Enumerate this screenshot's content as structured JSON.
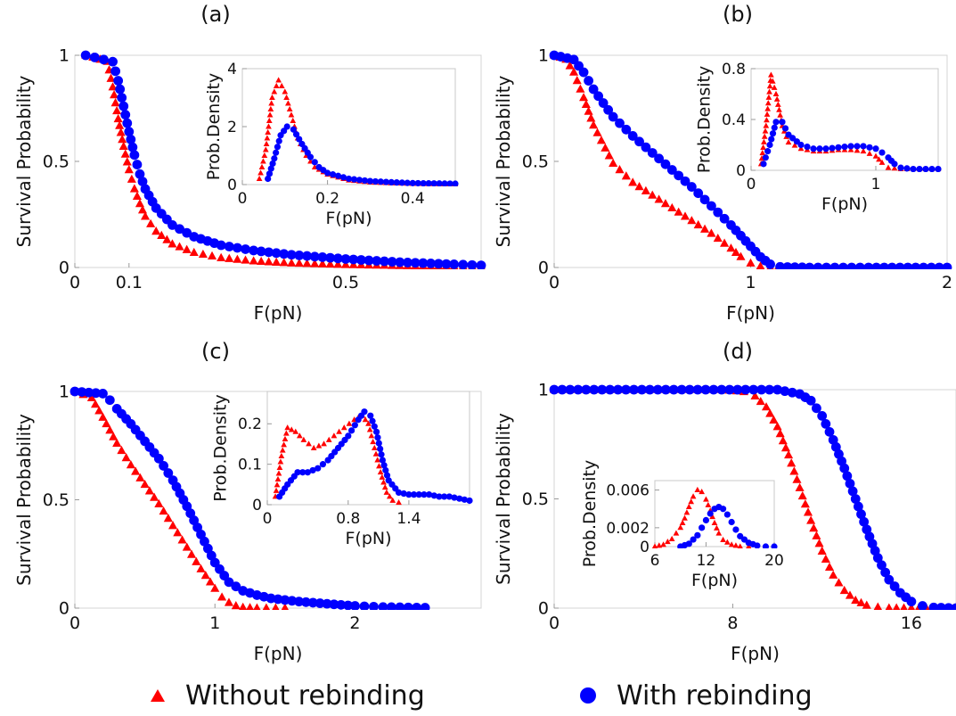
{
  "legend": {
    "without": "Without rebinding",
    "with": "With rebinding",
    "without_color": "#ff0000",
    "with_color": "#0000ff"
  },
  "chart_data": [
    {
      "type": "scatter",
      "title": "(a)",
      "xlabel": "F(pN)",
      "ylabel": "Survival Probability",
      "xlim": [
        0,
        0.75
      ],
      "ylim": [
        0,
        1
      ],
      "xticks": [
        0,
        0.1,
        0.5
      ],
      "xticklabels": [
        "0",
        "0.1",
        "0.5"
      ],
      "yticks": [
        0,
        0.5,
        1
      ],
      "yticklabels": [
        "0",
        "0.5",
        "1"
      ],
      "series": [
        {
          "name": "Without rebinding",
          "color": "#ff0000",
          "marker": "triangle",
          "x": [
            0.02,
            0.06,
            0.07,
            0.08,
            0.09,
            0.1,
            0.11,
            0.12,
            0.13,
            0.15,
            0.18,
            0.22,
            0.27,
            0.33,
            0.4,
            0.5,
            0.6,
            0.7,
            0.75
          ],
          "y": [
            1,
            0.97,
            0.85,
            0.7,
            0.57,
            0.46,
            0.37,
            0.3,
            0.24,
            0.17,
            0.11,
            0.07,
            0.045,
            0.03,
            0.02,
            0.013,
            0.008,
            0.005,
            0.004
          ]
        },
        {
          "name": "With rebinding",
          "color": "#0000ff",
          "marker": "circle",
          "x": [
            0.02,
            0.07,
            0.08,
            0.09,
            0.1,
            0.11,
            0.12,
            0.13,
            0.15,
            0.18,
            0.22,
            0.27,
            0.33,
            0.4,
            0.5,
            0.6,
            0.7,
            0.75
          ],
          "y": [
            1,
            0.97,
            0.88,
            0.76,
            0.64,
            0.53,
            0.44,
            0.37,
            0.28,
            0.2,
            0.145,
            0.105,
            0.08,
            0.06,
            0.04,
            0.025,
            0.015,
            0.01
          ]
        }
      ],
      "inset": {
        "xlabel": "F(pN)",
        "ylabel": "Prob.Density",
        "xlim": [
          0,
          0.5
        ],
        "ylim": [
          0,
          4
        ],
        "xticks": [
          0,
          0.2,
          0.4
        ],
        "xticklabels": [
          "0",
          "0.2",
          "0.4"
        ],
        "yticks": [
          0,
          2,
          4
        ],
        "yticklabels": [
          "0",
          "2",
          "4"
        ],
        "series": [
          {
            "name": "Without rebinding",
            "color": "#ff0000",
            "marker": "triangle",
            "x": [
              0.04,
              0.055,
              0.07,
              0.085,
              0.1,
              0.115,
              0.13,
              0.15,
              0.17,
              0.2,
              0.25,
              0.3,
              0.35,
              0.4,
              0.45,
              0.5
            ],
            "y": [
              0.2,
              1.2,
              3.0,
              3.6,
              3.2,
              2.4,
              1.6,
              1.0,
              0.6,
              0.35,
              0.15,
              0.08,
              0.05,
              0.03,
              0.02,
              0.01
            ]
          },
          {
            "name": "With rebinding",
            "color": "#0000ff",
            "marker": "circle",
            "x": [
              0.06,
              0.075,
              0.09,
              0.105,
              0.12,
              0.14,
              0.16,
              0.18,
              0.2,
              0.25,
              0.3,
              0.35,
              0.4,
              0.45,
              0.5
            ],
            "y": [
              0.2,
              0.9,
              1.7,
              2.0,
              1.9,
              1.4,
              0.95,
              0.6,
              0.4,
              0.2,
              0.12,
              0.08,
              0.05,
              0.04,
              0.03
            ]
          }
        ]
      }
    },
    {
      "type": "scatter",
      "title": "(b)",
      "xlabel": "F(pN)",
      "ylabel": "Survival Probability",
      "xlim": [
        0,
        2
      ],
      "ylim": [
        0,
        1
      ],
      "xticks": [
        0,
        1,
        2
      ],
      "xticklabels": [
        "0",
        "1",
        "2"
      ],
      "yticks": [
        0,
        0.5,
        1
      ],
      "yticklabels": [
        "0",
        "0.5",
        "1"
      ],
      "series": [
        {
          "name": "Without rebinding",
          "color": "#ff0000",
          "marker": "triangle",
          "x": [
            0,
            0.06,
            0.1,
            0.15,
            0.2,
            0.3,
            0.4,
            0.5,
            0.6,
            0.7,
            0.8,
            0.9,
            0.95,
            1.0,
            1.05,
            1.1,
            1.3,
            1.6,
            2.0
          ],
          "y": [
            1,
            0.98,
            0.92,
            0.8,
            0.67,
            0.49,
            0.4,
            0.34,
            0.28,
            0.22,
            0.16,
            0.09,
            0.05,
            0.02,
            0.005,
            0,
            0,
            0,
            0
          ]
        },
        {
          "name": "With rebinding",
          "color": "#0000ff",
          "marker": "circle",
          "x": [
            0,
            0.1,
            0.15,
            0.2,
            0.3,
            0.4,
            0.5,
            0.6,
            0.7,
            0.8,
            0.9,
            1.0,
            1.05,
            1.1,
            1.15,
            1.3,
            1.6,
            2.0
          ],
          "y": [
            1,
            0.98,
            0.92,
            0.84,
            0.71,
            0.62,
            0.54,
            0.46,
            0.38,
            0.29,
            0.2,
            0.1,
            0.05,
            0.015,
            0.003,
            0,
            0,
            0
          ]
        }
      ],
      "inset": {
        "xlabel": "F(pN)",
        "ylabel": "Prob.Density",
        "xlim": [
          0,
          1.5
        ],
        "ylim": [
          0,
          0.8
        ],
        "xticks": [
          0,
          1
        ],
        "xticklabels": [
          "0",
          "1"
        ],
        "yticks": [
          0,
          0.4,
          0.8
        ],
        "yticklabels": [
          "0",
          "0.4",
          "0.8"
        ],
        "series": [
          {
            "name": "Without rebinding",
            "color": "#ff0000",
            "marker": "triangle",
            "x": [
              0.08,
              0.12,
              0.16,
              0.2,
              0.25,
              0.3,
              0.4,
              0.5,
              0.6,
              0.7,
              0.8,
              0.9,
              1.0,
              1.05,
              1.1,
              1.2,
              1.3,
              1.4,
              1.5
            ],
            "y": [
              0.05,
              0.35,
              0.75,
              0.6,
              0.35,
              0.22,
              0.17,
              0.15,
              0.15,
              0.16,
              0.16,
              0.15,
              0.11,
              0.06,
              0.02,
              0.01,
              0.01,
              0.01,
              0.01
            ]
          },
          {
            "name": "With rebinding",
            "color": "#0000ff",
            "marker": "circle",
            "x": [
              0.1,
              0.15,
              0.2,
              0.25,
              0.3,
              0.4,
              0.5,
              0.6,
              0.7,
              0.8,
              0.9,
              1.0,
              1.05,
              1.1,
              1.15,
              1.2,
              1.3,
              1.4,
              1.5
            ],
            "y": [
              0.05,
              0.2,
              0.38,
              0.38,
              0.28,
              0.2,
              0.17,
              0.17,
              0.18,
              0.19,
              0.19,
              0.17,
              0.14,
              0.1,
              0.05,
              0.02,
              0.01,
              0.01,
              0.01
            ]
          }
        ]
      }
    },
    {
      "type": "scatter",
      "title": "(c)",
      "xlabel": "F(pN)",
      "ylabel": "Survival Probability",
      "xlim": [
        0,
        2.9
      ],
      "ylim": [
        0,
        1
      ],
      "xticks": [
        0,
        1,
        2
      ],
      "xticklabels": [
        "0",
        "1",
        "2"
      ],
      "yticks": [
        0,
        0.5,
        1
      ],
      "yticklabels": [
        "0",
        "0.5",
        "1"
      ],
      "series": [
        {
          "name": "Without rebinding",
          "color": "#ff0000",
          "marker": "triangle",
          "x": [
            0,
            0.12,
            0.2,
            0.3,
            0.4,
            0.5,
            0.6,
            0.7,
            0.8,
            0.9,
            1.0,
            1.05,
            1.1,
            1.15,
            1.2,
            1.3,
            1.5
          ],
          "y": [
            1,
            0.97,
            0.88,
            0.76,
            0.66,
            0.57,
            0.48,
            0.38,
            0.28,
            0.18,
            0.09,
            0.05,
            0.025,
            0.01,
            0.003,
            0,
            0
          ]
        },
        {
          "name": "With rebinding",
          "color": "#0000ff",
          "marker": "circle",
          "x": [
            0,
            0.2,
            0.25,
            0.3,
            0.4,
            0.5,
            0.6,
            0.7,
            0.8,
            0.9,
            1.0,
            1.1,
            1.2,
            1.3,
            1.4,
            1.6,
            1.8,
            2.0,
            2.2,
            2.5
          ],
          "y": [
            1,
            0.99,
            0.96,
            0.92,
            0.85,
            0.77,
            0.69,
            0.59,
            0.47,
            0.34,
            0.21,
            0.12,
            0.08,
            0.06,
            0.045,
            0.03,
            0.02,
            0.01,
            0.005,
            0.002
          ]
        }
      ],
      "inset": {
        "xlabel": "F(pN)",
        "ylabel": "Prob.Density",
        "xlim": [
          0,
          2.0
        ],
        "ylim": [
          0,
          0.28
        ],
        "xticks": [
          0,
          0.8,
          1.4
        ],
        "xticklabels": [
          "0",
          "0.8",
          "1.4"
        ],
        "yticks": [
          0,
          0.1,
          0.2
        ],
        "yticklabels": [
          "0",
          "0.1",
          "0.2"
        ],
        "series": [
          {
            "name": "Without rebinding",
            "color": "#ff0000",
            "marker": "triangle",
            "x": [
              0.08,
              0.14,
              0.2,
              0.28,
              0.36,
              0.46,
              0.56,
              0.66,
              0.76,
              0.86,
              0.94,
              1.0,
              1.06,
              1.12,
              1.18,
              1.24,
              1.3
            ],
            "y": [
              0.02,
              0.12,
              0.19,
              0.18,
              0.16,
              0.14,
              0.15,
              0.17,
              0.19,
              0.21,
              0.22,
              0.2,
              0.14,
              0.08,
              0.03,
              0.01,
              0.005
            ]
          },
          {
            "name": "With rebinding",
            "color": "#0000ff",
            "marker": "circle",
            "x": [
              0.12,
              0.2,
              0.3,
              0.4,
              0.5,
              0.6,
              0.7,
              0.8,
              0.9,
              0.96,
              1.02,
              1.08,
              1.14,
              1.2,
              1.3,
              1.4,
              1.5,
              1.6,
              1.7,
              1.8,
              1.9,
              2.0
            ],
            "y": [
              0.02,
              0.05,
              0.08,
              0.08,
              0.09,
              0.11,
              0.14,
              0.17,
              0.21,
              0.23,
              0.22,
              0.18,
              0.11,
              0.06,
              0.03,
              0.025,
              0.025,
              0.025,
              0.02,
              0.02,
              0.015,
              0.01
            ]
          }
        ]
      }
    },
    {
      "type": "scatter",
      "title": "(d)",
      "xlabel": "F(pN)",
      "ylabel": "Survival Probability",
      "xlim": [
        0,
        18
      ],
      "ylim": [
        0,
        1
      ],
      "xticks": [
        0,
        8,
        16
      ],
      "xticklabels": [
        "0",
        "8",
        "16"
      ],
      "yticks": [
        0,
        0.5,
        1
      ],
      "yticklabels": [
        "0",
        "0.5",
        "1"
      ],
      "series": [
        {
          "name": "Without rebinding",
          "color": "#ff0000",
          "marker": "triangle",
          "x": [
            0,
            7.5,
            8.5,
            9,
            9.5,
            10,
            10.5,
            11,
            11.5,
            12,
            12.5,
            13,
            13.5,
            14,
            14.5,
            15,
            16,
            18
          ],
          "y": [
            1,
            1,
            0.99,
            0.97,
            0.92,
            0.83,
            0.7,
            0.55,
            0.4,
            0.26,
            0.15,
            0.08,
            0.035,
            0.012,
            0.004,
            0,
            0,
            0
          ]
        },
        {
          "name": "With rebinding",
          "color": "#0000ff",
          "marker": "circle",
          "x": [
            0,
            10,
            11,
            11.5,
            12,
            12.5,
            13,
            13.5,
            14,
            14.5,
            15,
            15.5,
            16,
            16.5,
            17,
            18
          ],
          "y": [
            1,
            1,
            0.98,
            0.95,
            0.88,
            0.77,
            0.64,
            0.5,
            0.36,
            0.23,
            0.13,
            0.07,
            0.03,
            0.01,
            0.003,
            0
          ]
        }
      ],
      "inset": {
        "xlabel": "F(pN)",
        "ylabel": "Prob.Density",
        "xlim": [
          6,
          20
        ],
        "ylim": [
          0,
          0.007
        ],
        "xticks": [
          6,
          12,
          20
        ],
        "xticklabels": [
          "6",
          "12",
          "20"
        ],
        "yticks": [
          0,
          0.002,
          0.006
        ],
        "yticklabels": [
          "0",
          "0.002",
          "0.006"
        ],
        "series": [
          {
            "name": "Without rebinding",
            "color": "#ff0000",
            "marker": "triangle",
            "x": [
              6,
              7,
              8,
              9,
              9.5,
              10,
              10.5,
              11,
              11.5,
              12,
              12.5,
              13,
              13.5,
              14,
              15,
              16,
              17
            ],
            "y": [
              0,
              0.0002,
              0.0008,
              0.002,
              0.003,
              0.0042,
              0.0053,
              0.006,
              0.0058,
              0.005,
              0.0038,
              0.0025,
              0.0014,
              0.0007,
              0.0002,
              0,
              0
            ]
          },
          {
            "name": "With rebinding",
            "color": "#0000ff",
            "marker": "circle",
            "x": [
              9,
              10,
              11,
              11.5,
              12,
              12.5,
              13,
              13.5,
              14,
              14.5,
              15,
              15.5,
              16,
              17,
              18,
              19,
              20
            ],
            "y": [
              0,
              0.0003,
              0.0012,
              0.002,
              0.0028,
              0.0035,
              0.004,
              0.0042,
              0.004,
              0.0034,
              0.0026,
              0.0018,
              0.0011,
              0.0004,
              0.0001,
              0,
              0
            ]
          }
        ]
      }
    }
  ]
}
